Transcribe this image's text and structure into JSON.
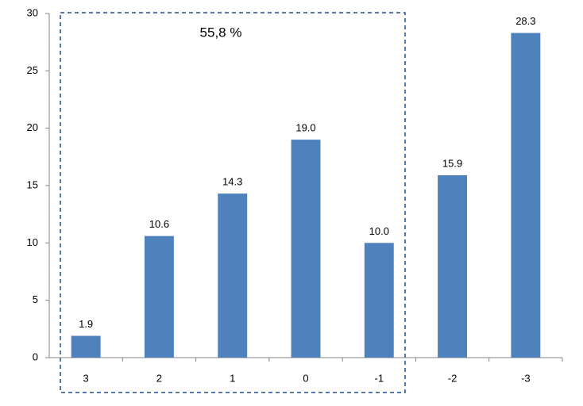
{
  "chart_data": {
    "type": "bar",
    "annotation": "55,8 %",
    "categories": [
      "3",
      "2",
      "1",
      "0",
      "-1",
      "-2",
      "-3"
    ],
    "values": [
      1.9,
      10.6,
      14.3,
      19.0,
      10.0,
      15.9,
      28.3
    ],
    "value_labels": [
      "1.9",
      "10.6",
      "14.3",
      "19.0",
      "10.0",
      "15.9",
      "28.3"
    ],
    "color": "#4f81bd",
    "ylim": [
      0,
      30
    ],
    "yticks": [
      0,
      5,
      10,
      15,
      20,
      25,
      30
    ],
    "grid": false
  }
}
